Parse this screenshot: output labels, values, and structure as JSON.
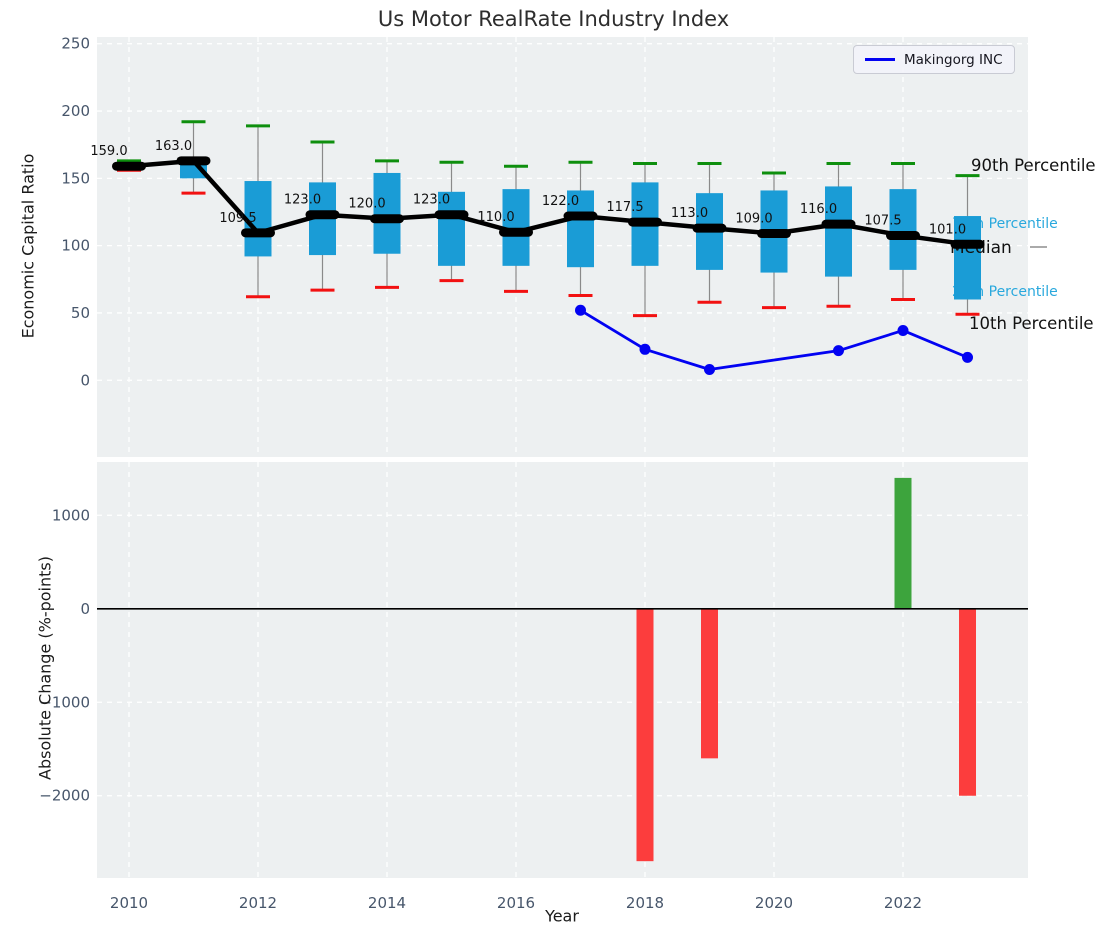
{
  "figure": {
    "title": "Us Motor RealRate Industry Index",
    "panel_background": "#edf0f1",
    "grid_color": "#ffffff",
    "tick_color": "#47566b"
  },
  "chart_data": [
    {
      "type": "boxplot-with-line",
      "title": "Us Motor RealRate Industry Index",
      "ylabel": "Economic Capital Ratio",
      "ylim": [
        -57,
        255
      ],
      "yticks": [
        0,
        50,
        100,
        150,
        200,
        250
      ],
      "grid": true,
      "categories": [
        2010,
        2011,
        2012,
        2013,
        2014,
        2015,
        2016,
        2017,
        2018,
        2019,
        2020,
        2021,
        2022,
        2023
      ],
      "box_series": {
        "p90": [
          163,
          192,
          189,
          177,
          163,
          162,
          159,
          162,
          161,
          161,
          154,
          161,
          161,
          152
        ],
        "p75": [
          161,
          161,
          148,
          147,
          154,
          140,
          142,
          141,
          147,
          139,
          141,
          144,
          142,
          122
        ],
        "median": [
          159.0,
          163.0,
          109.5,
          123.0,
          120.0,
          123.0,
          110.0,
          122.0,
          117.5,
          113.0,
          109.0,
          116.0,
          107.5,
          101.0
        ],
        "p25": [
          157,
          150,
          92,
          93,
          94,
          85,
          85,
          84,
          85,
          82,
          80,
          77,
          82,
          60
        ],
        "p10": [
          156,
          139,
          62,
          67,
          69,
          74,
          66,
          63,
          48,
          58,
          54,
          55,
          60,
          49
        ]
      },
      "median_labels": [
        "159.0",
        "163.0",
        "109.5",
        "123.0",
        "120.0",
        "123.0",
        "110.0",
        "122.0",
        "117.5",
        "113.0",
        "109.0",
        "116.0",
        "107.5",
        "101.0"
      ],
      "annotations": {
        "p90": "90th Percentile",
        "p75": "75th Percentile",
        "median": "Median",
        "p25": "25th Percentile",
        "p10": "10th Percentile"
      },
      "annotation_colors": {
        "black": "#111111",
        "cyan": "#29a8dd"
      },
      "box_colors": {
        "box": "#1a9cd6",
        "whisker": "#8a8a8a",
        "cap_top": "#0e8f0e",
        "cap_bottom": "#f21111",
        "median": "#000000"
      },
      "line_series": [
        {
          "name": "Makingorg INC",
          "color": "#0202f2",
          "x": [
            2017,
            2018,
            2019,
            2021,
            2022,
            2023
          ],
          "values": [
            52,
            23,
            8,
            22,
            37,
            17
          ]
        }
      ],
      "legend_position": "upper-right"
    },
    {
      "type": "bar",
      "ylabel": "Absolute Change (%-points)",
      "xlabel": "Year",
      "ylim": [
        -2880,
        1570
      ],
      "yticks": [
        1000,
        0,
        -1000,
        -2000
      ],
      "xticks": [
        2010,
        2012,
        2014,
        2016,
        2018,
        2020,
        2022
      ],
      "bars": [
        {
          "year": 2018,
          "value": -2700
        },
        {
          "year": 2019,
          "value": -1600
        },
        {
          "year": 2022,
          "value": 1400
        },
        {
          "year": 2023,
          "value": -2000
        }
      ],
      "bar_colors": {
        "positive": "#3da43d",
        "negative": "#fc3d3d"
      },
      "zero_line_color": "#000000"
    }
  ]
}
